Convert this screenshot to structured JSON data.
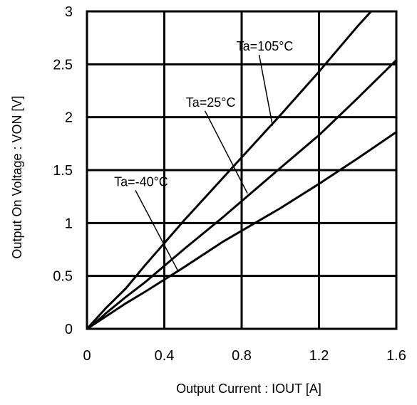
{
  "chart_data": {
    "type": "line",
    "title": "",
    "xlabel": "Output Current : IOUT [A]",
    "ylabel": "Output On Voltage : VON [V]",
    "xlim": [
      0,
      1.6
    ],
    "ylim": [
      0,
      3
    ],
    "x_ticks": [
      "0",
      "0.4",
      "0.8",
      "1.2",
      "1.6"
    ],
    "y_ticks": [
      "0",
      "0.5",
      "1",
      "1.5",
      "2",
      "2.5",
      "3"
    ],
    "grid": true,
    "series": [
      {
        "name": "Ta=105°C",
        "x": [
          0,
          0.05,
          0.1,
          0.2,
          0.3,
          0.5,
          0.7,
          1.0,
          1.2,
          1.4,
          1.47
        ],
        "y": [
          0,
          0.1,
          0.2,
          0.38,
          0.6,
          1.02,
          1.42,
          2.02,
          2.43,
          2.86,
          3.0
        ]
      },
      {
        "name": "Ta=25°C",
        "x": [
          0,
          0.05,
          0.1,
          0.2,
          0.3,
          0.5,
          0.7,
          1.0,
          1.2,
          1.4,
          1.6
        ],
        "y": [
          0,
          0.07,
          0.15,
          0.3,
          0.44,
          0.75,
          1.05,
          1.52,
          1.83,
          2.18,
          2.54
        ]
      },
      {
        "name": "Ta=-40°C",
        "x": [
          0,
          0.05,
          0.1,
          0.2,
          0.3,
          0.5,
          0.7,
          1.0,
          1.2,
          1.4,
          1.6
        ],
        "y": [
          0,
          0.06,
          0.12,
          0.24,
          0.35,
          0.58,
          0.82,
          1.14,
          1.37,
          1.61,
          1.86
        ]
      }
    ],
    "annotations": [
      {
        "text": "Ta=105°C",
        "series": 0,
        "point_x": 0.96,
        "point_y": 1.92,
        "label_x": 0.92,
        "label_y": 2.63
      },
      {
        "text": "Ta=25°C",
        "series": 1,
        "point_x": 0.83,
        "point_y": 1.28,
        "label_x": 0.64,
        "label_y": 2.1
      },
      {
        "text": "Ta=-40°C",
        "series": 2,
        "point_x": 0.47,
        "point_y": 0.55,
        "label_x": 0.28,
        "label_y": 1.35
      }
    ]
  }
}
